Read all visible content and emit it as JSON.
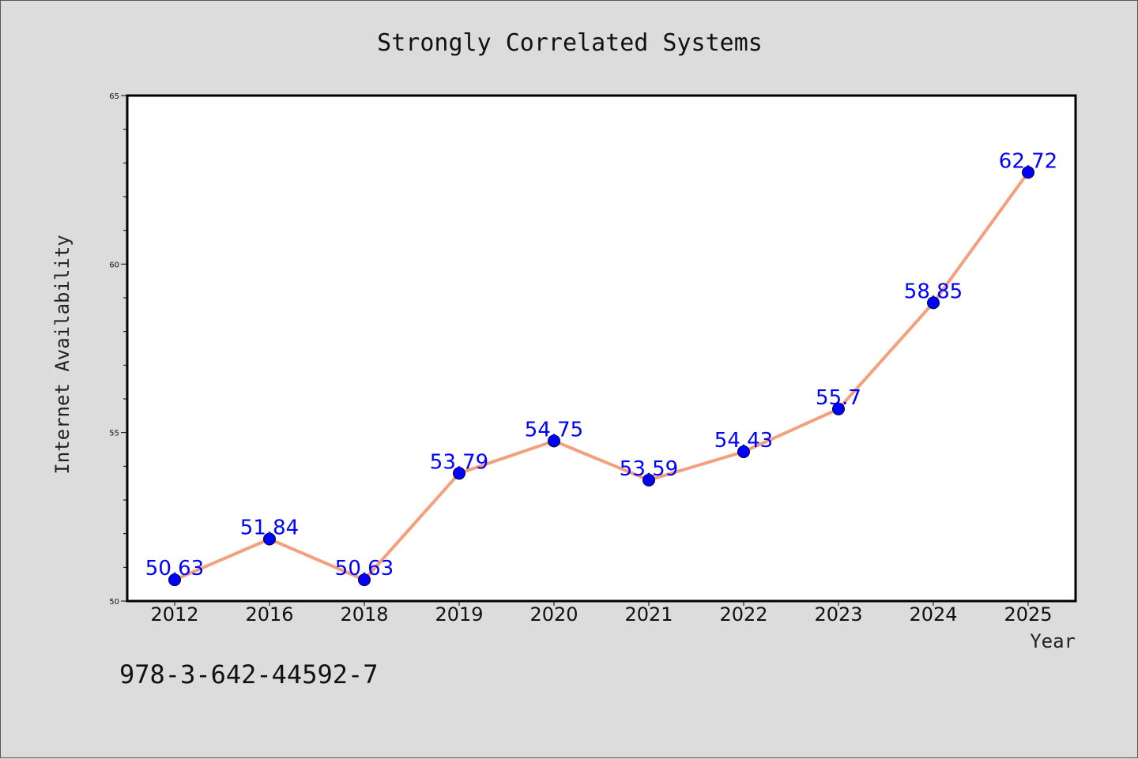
{
  "chart_data": {
    "type": "line",
    "title": "Strongly Correlated Systems",
    "xlabel": "Year",
    "ylabel": "Internet Availability",
    "categories": [
      "2012",
      "2016",
      "2018",
      "2019",
      "2020",
      "2021",
      "2022",
      "2023",
      "2024",
      "2025"
    ],
    "series": [
      {
        "values": [
          50.63,
          51.84,
          50.63,
          53.79,
          54.75,
          53.59,
          54.43,
          55.7,
          58.85,
          62.72
        ],
        "labels": [
          "50.63",
          "51.84",
          "50.63",
          "53.79",
          "54.75",
          "53.59",
          "54.43",
          "55.7",
          "58.85",
          "62.72"
        ],
        "line_color": "#f4a07f",
        "marker_color": "#0000ff"
      }
    ],
    "ylim": [
      50,
      65
    ],
    "yticks": [
      "50",
      "55",
      "60",
      "65"
    ],
    "grid": false,
    "legend": "none"
  },
  "footer": {
    "isbn": "978-3-642-44592-7"
  },
  "colors": {
    "background": "#dcdcdc",
    "plot_background": "#ffffff",
    "line": "#f4a07f",
    "marker": "#0000ff",
    "data_label": "#0000ff"
  }
}
